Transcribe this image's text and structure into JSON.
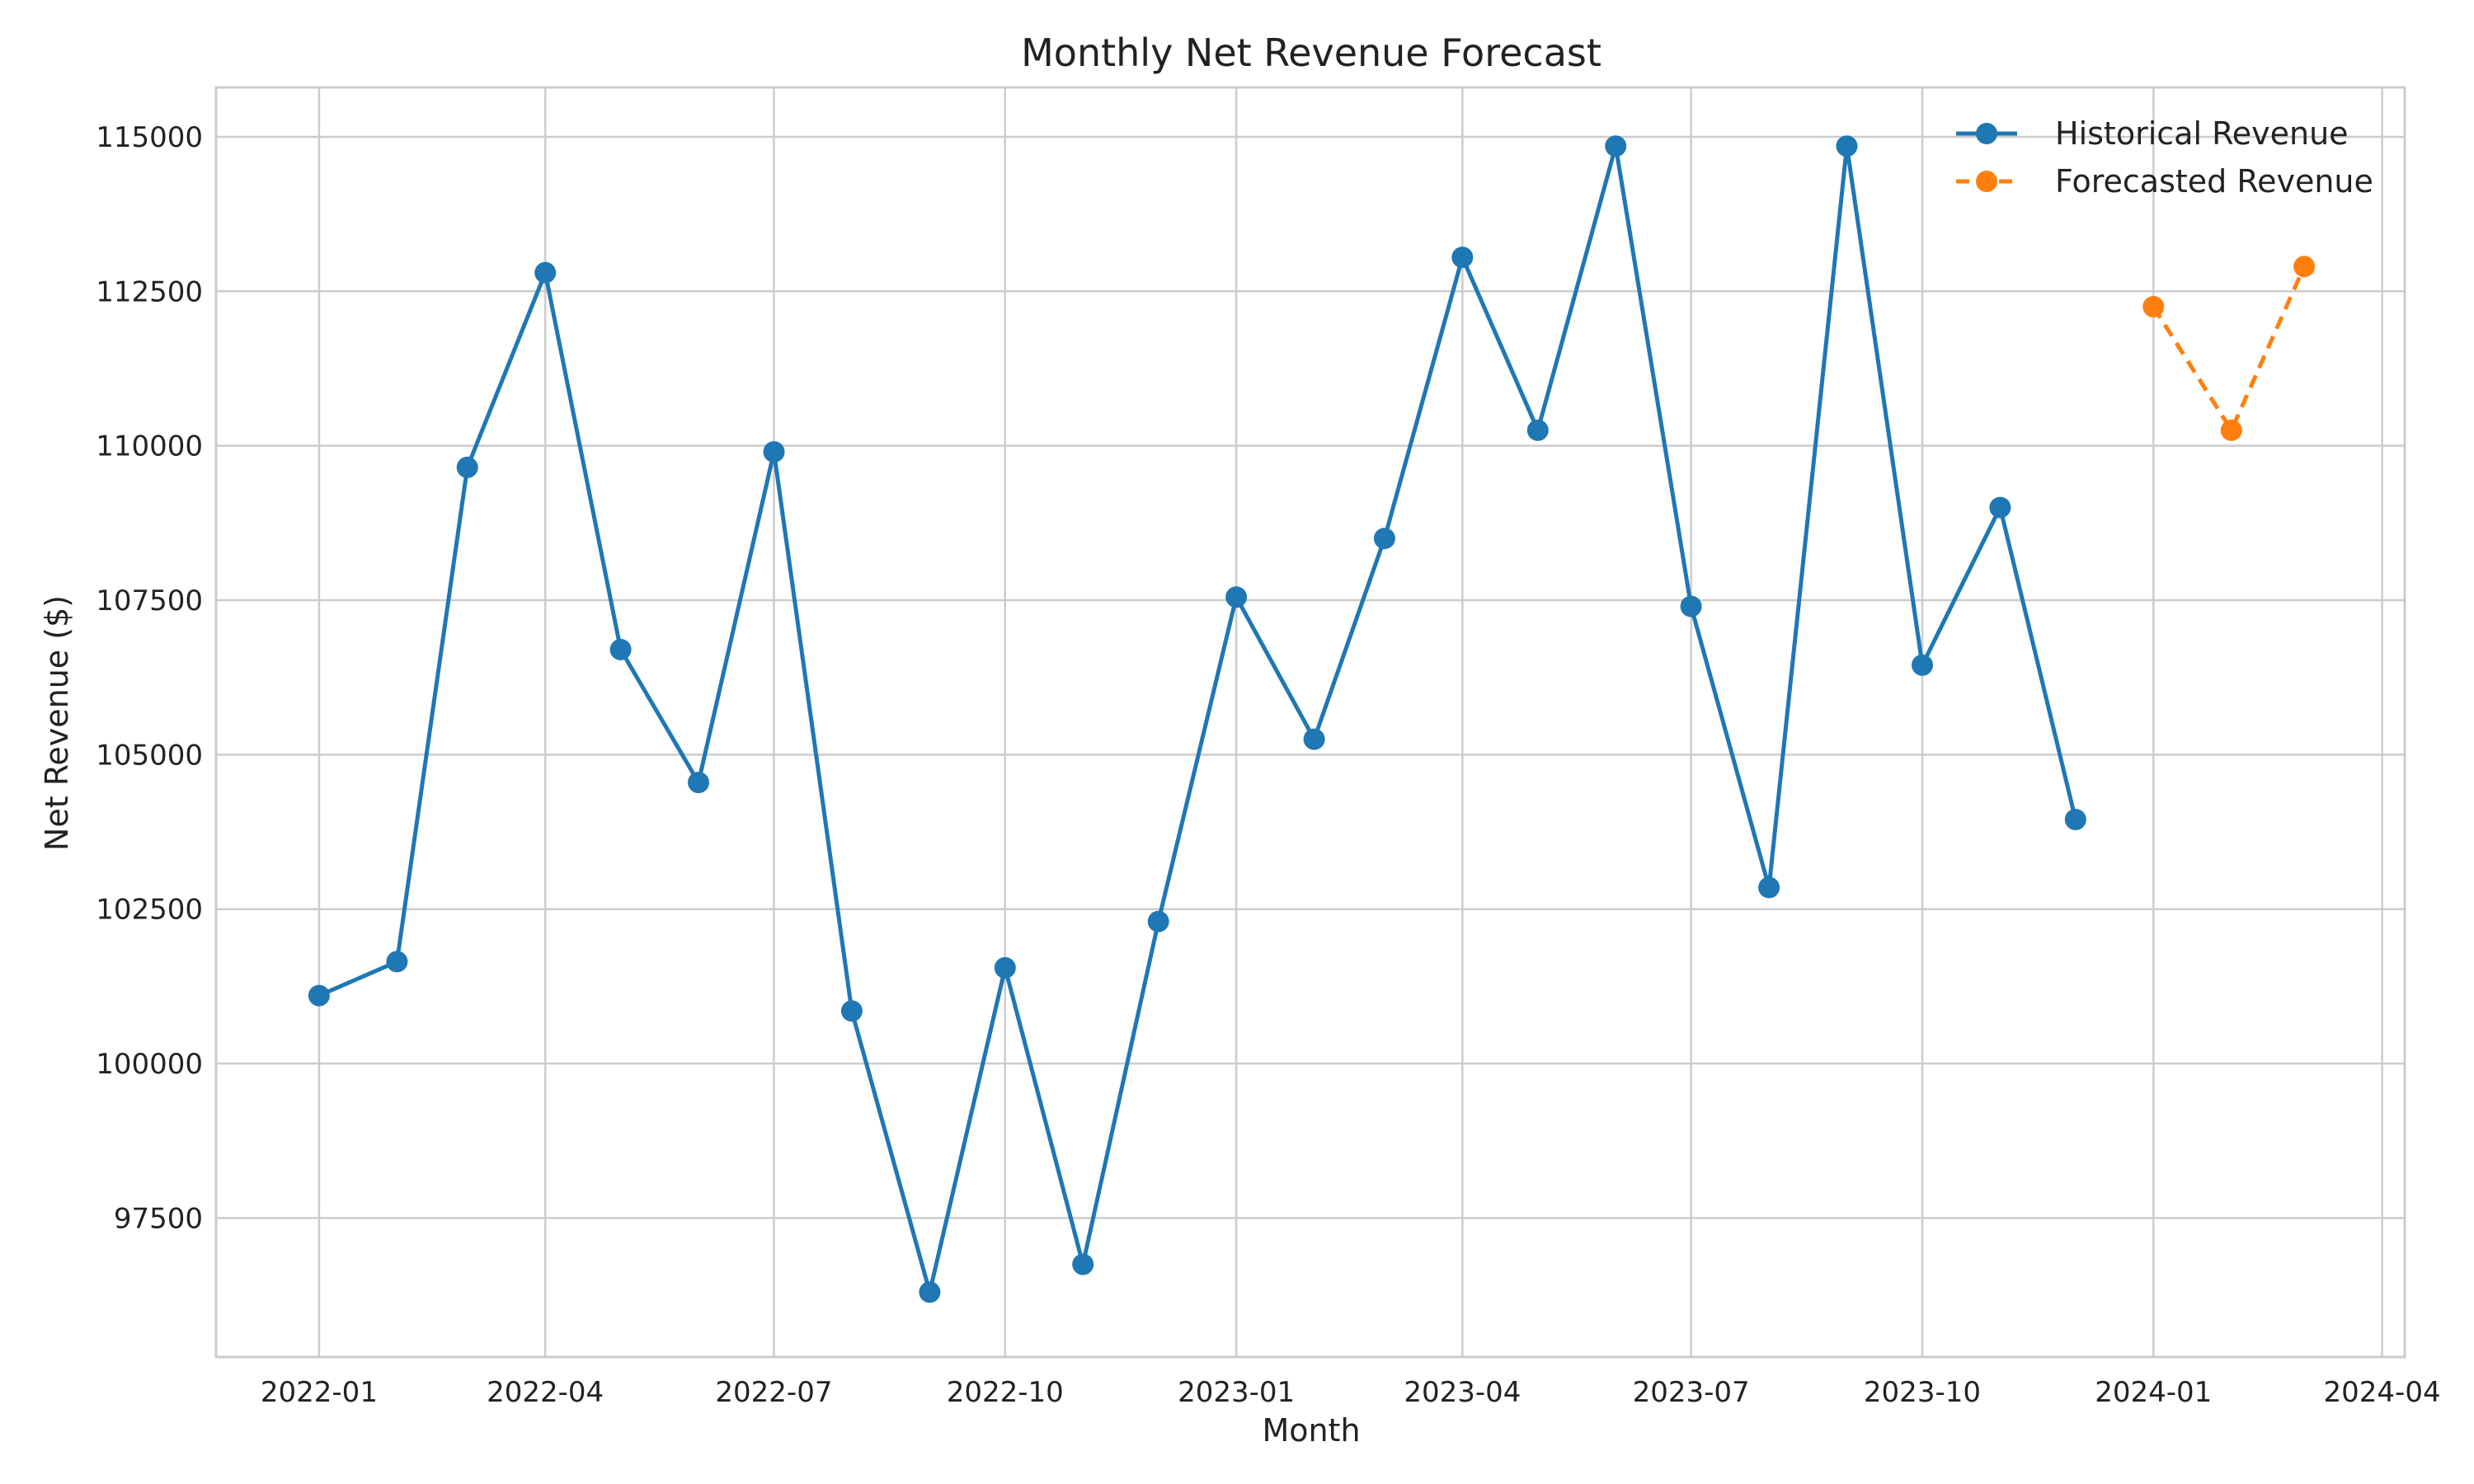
{
  "chart_data": {
    "type": "line",
    "title": "Monthly Net Revenue Forecast",
    "xlabel": "Month",
    "ylabel": "Net Revenue ($)",
    "xlim": [
      "2021-11-21",
      "2024-04-10"
    ],
    "ylim": [
      95250,
      115800
    ],
    "x_ticks": [
      "2022-01",
      "2022-04",
      "2022-07",
      "2022-10",
      "2023-01",
      "2023-04",
      "2023-07",
      "2023-10",
      "2024-01",
      "2024-04"
    ],
    "y_ticks": [
      97500,
      100000,
      102500,
      105000,
      107500,
      110000,
      112500,
      115000
    ],
    "grid": true,
    "legend_position": "top-right",
    "series": [
      {
        "name": "Historical Revenue",
        "color": "#1f77b4",
        "line_style": "solid",
        "marker": "circle",
        "x": [
          "2022-01-01",
          "2022-02-01",
          "2022-03-01",
          "2022-04-01",
          "2022-05-01",
          "2022-06-01",
          "2022-07-01",
          "2022-08-01",
          "2022-09-01",
          "2022-10-01",
          "2022-11-01",
          "2022-12-01",
          "2023-01-01",
          "2023-02-01",
          "2023-03-01",
          "2023-04-01",
          "2023-05-01",
          "2023-06-01",
          "2023-07-01",
          "2023-08-01",
          "2023-09-01",
          "2023-10-01",
          "2023-11-01",
          "2023-12-01"
        ],
        "values": [
          101100,
          101650,
          109650,
          112800,
          106700,
          104550,
          109900,
          100850,
          96300,
          101550,
          96750,
          102300,
          107550,
          105250,
          108500,
          113050,
          110250,
          114850,
          107400,
          102850,
          114850,
          106450,
          109000,
          103950
        ]
      },
      {
        "name": "Forecasted Revenue",
        "color": "#ff7f0e",
        "line_style": "dashed",
        "marker": "circle",
        "x": [
          "2024-01-01",
          "2024-02-01",
          "2024-03-01"
        ],
        "values": [
          112250,
          110250,
          112900
        ]
      }
    ]
  }
}
